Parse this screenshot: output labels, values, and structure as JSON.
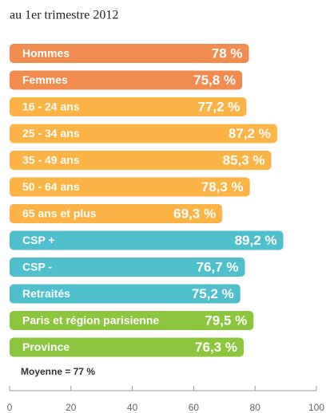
{
  "chart_data": {
    "type": "bar",
    "orientation": "horizontal",
    "title": "au 1er trimestre 2012",
    "categories": [
      "Hommes",
      "Femmes",
      "16 - 24 ans",
      "25 - 34 ans",
      "35 - 49 ans",
      "50 - 64 ans",
      "65 ans et plus",
      "CSP +",
      "CSP -",
      "Retraités",
      "Paris et région parisienne",
      "Province"
    ],
    "values": [
      78,
      75.8,
      77.2,
      87.2,
      85.3,
      78.3,
      69.3,
      89.2,
      76.7,
      75.2,
      79.5,
      76.3
    ],
    "value_labels": [
      "78 %",
      "75,8 %",
      "77,2 %",
      "87,2 %",
      "85,3 %",
      "78,3 %",
      "69,3 %",
      "89,2 %",
      "76,7 %",
      "75,2 %",
      "79,5 %",
      "76,3 %"
    ],
    "colors": [
      "#f08c50",
      "#f08c50",
      "#fbb445",
      "#fbb445",
      "#fbb445",
      "#fbb445",
      "#fbb445",
      "#4fbecd",
      "#4fbecd",
      "#4fbecd",
      "#8cc63f",
      "#8cc63f"
    ],
    "annotation": "Moyenne = 77 %",
    "xlim": [
      0,
      100
    ],
    "xticks": [
      0,
      20,
      40,
      60,
      80,
      100
    ]
  }
}
